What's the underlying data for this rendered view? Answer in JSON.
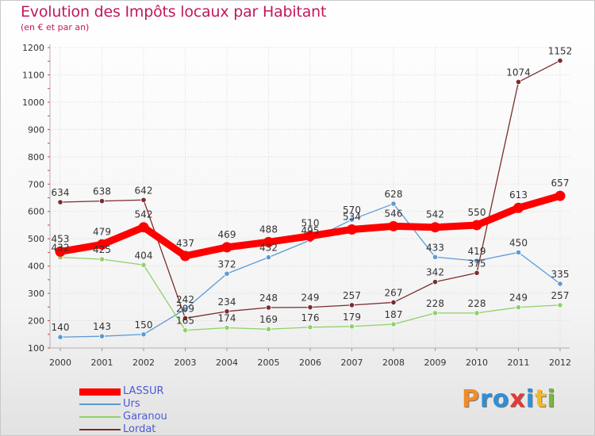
{
  "title": "Evolution des Impôts locaux par Habitant",
  "subtitle": "(en € et par an)",
  "logo": {
    "text": "Proxiti",
    "letters": [
      {
        "ch": "P",
        "color": "#f28c28"
      },
      {
        "ch": "r",
        "color": "#2f8fd8"
      },
      {
        "ch": "o",
        "color": "#2f8fd8"
      },
      {
        "ch": "x",
        "color": "#e53935"
      },
      {
        "ch": "i",
        "color": "#2f8fd8"
      },
      {
        "ch": "t",
        "color": "#f2b827"
      },
      {
        "ch": "i",
        "color": "#7cb342"
      }
    ]
  },
  "chart_data": {
    "type": "line",
    "x": [
      "2000",
      "2001",
      "2002",
      "2003",
      "2004",
      "2005",
      "2006",
      "2007",
      "2008",
      "2009",
      "2010",
      "2011",
      "2012"
    ],
    "ylim": [
      100,
      1200
    ],
    "yticks": [
      "100",
      "200",
      "300",
      "400",
      "500",
      "600",
      "700",
      "800",
      "900",
      "1000",
      "1100",
      "1200"
    ],
    "grid": true,
    "legend_position": "bottom-left",
    "series": [
      {
        "name": "LASSUR",
        "color": "#ff0000",
        "emphasis": true,
        "values": [
          453,
          479,
          542,
          437,
          469,
          488,
          510,
          534,
          546,
          542,
          550,
          613,
          657
        ],
        "labels": [
          "453",
          "479",
          "542",
          "437",
          "469",
          "488",
          "510",
          "534",
          "546",
          "542",
          "550",
          "613",
          "657"
        ]
      },
      {
        "name": "Urs",
        "color": "#5b9bd5",
        "values": [
          140,
          143,
          150,
          242,
          372,
          432,
          495,
          570,
          628,
          433,
          419,
          450,
          335
        ],
        "labels": [
          "140",
          "143",
          "150",
          "242",
          "372",
          "432",
          "495",
          "570",
          "628",
          "433",
          "419",
          "450",
          "335"
        ]
      },
      {
        "name": "Garanou",
        "color": "#8fd16a",
        "values": [
          432,
          425,
          404,
          165,
          174,
          169,
          176,
          179,
          187,
          228,
          228,
          249,
          257
        ],
        "labels": [
          "432",
          "425",
          "404",
          "165",
          "174",
          "169",
          "176",
          "179",
          "187",
          "228",
          "228",
          "249",
          "257"
        ]
      },
      {
        "name": "Lordat",
        "color": "#7b2c2c",
        "values": [
          634,
          638,
          642,
          209,
          234,
          248,
          249,
          257,
          267,
          342,
          375,
          1074,
          1152
        ],
        "labels": [
          "634",
          "638",
          "642",
          "209",
          "234",
          "248",
          "249",
          "257",
          "267",
          "342",
          "375",
          "1074",
          "1152"
        ]
      }
    ]
  }
}
